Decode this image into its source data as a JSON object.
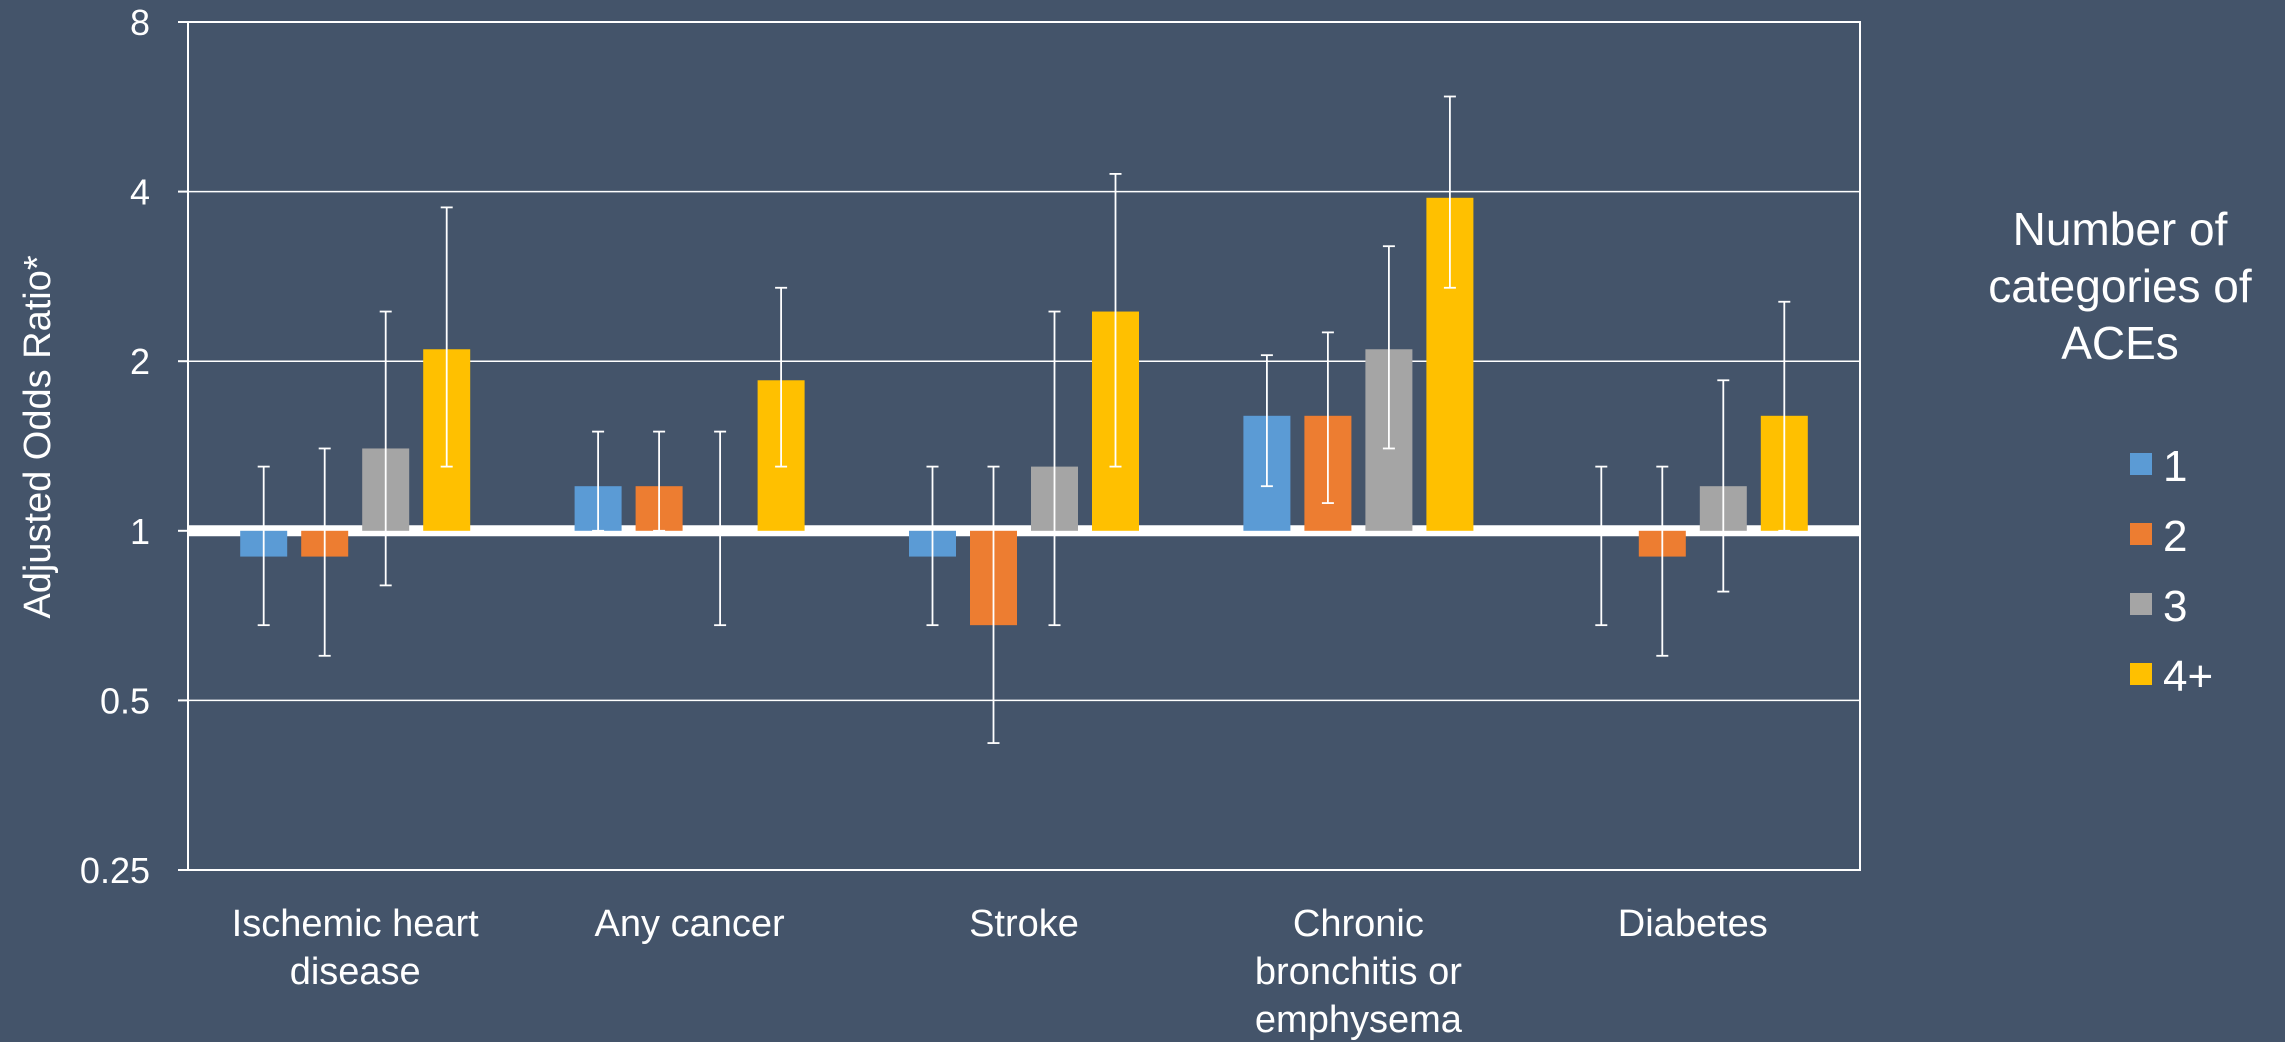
{
  "chart_data": {
    "type": "bar",
    "ylabel": "Adjusted Odds Ratio*",
    "y_scale": "log2",
    "ylim": [
      0.25,
      8
    ],
    "yticks": [
      0.25,
      0.5,
      1,
      2,
      4,
      8
    ],
    "ytick_labels": [
      "0.25",
      "0.5",
      "1",
      "2",
      "4",
      "8"
    ],
    "reference_line": 1,
    "grid": true,
    "categories": [
      [
        "Ischemic heart",
        "disease"
      ],
      [
        "Any cancer"
      ],
      [
        "Stroke"
      ],
      [
        "Chronic",
        "bronchitis or",
        "emphysema"
      ],
      [
        "Diabetes"
      ]
    ],
    "legend": {
      "title": [
        "Number of",
        "categories of",
        "ACEs"
      ],
      "placement": "right"
    },
    "series": [
      {
        "name": "1",
        "color": "#5b9bd5",
        "values": [
          0.9,
          1.2,
          0.9,
          1.6,
          1.0
        ],
        "ci_low": [
          0.68,
          1.0,
          0.68,
          1.2,
          0.68
        ],
        "ci_high": [
          1.3,
          1.5,
          1.3,
          2.05,
          1.3
        ]
      },
      {
        "name": "2",
        "color": "#ed7d31",
        "values": [
          0.9,
          1.2,
          0.68,
          1.6,
          0.9
        ],
        "ci_low": [
          0.6,
          1.0,
          0.42,
          1.12,
          0.6
        ],
        "ci_high": [
          1.4,
          1.5,
          1.3,
          2.25,
          1.3
        ]
      },
      {
        "name": "3",
        "color": "#a5a5a5",
        "values": [
          1.4,
          1.0,
          1.3,
          2.1,
          1.2
        ],
        "ci_low": [
          0.8,
          0.68,
          0.68,
          1.4,
          0.78
        ],
        "ci_high": [
          2.45,
          1.5,
          2.45,
          3.2,
          1.85
        ]
      },
      {
        "name": "4+",
        "color": "#ffc000",
        "values": [
          2.1,
          1.85,
          2.45,
          3.9,
          1.6
        ],
        "ci_low": [
          1.3,
          1.3,
          1.3,
          2.7,
          1.0
        ],
        "ci_high": [
          3.75,
          2.7,
          4.3,
          5.9,
          2.55
        ]
      }
    ]
  }
}
